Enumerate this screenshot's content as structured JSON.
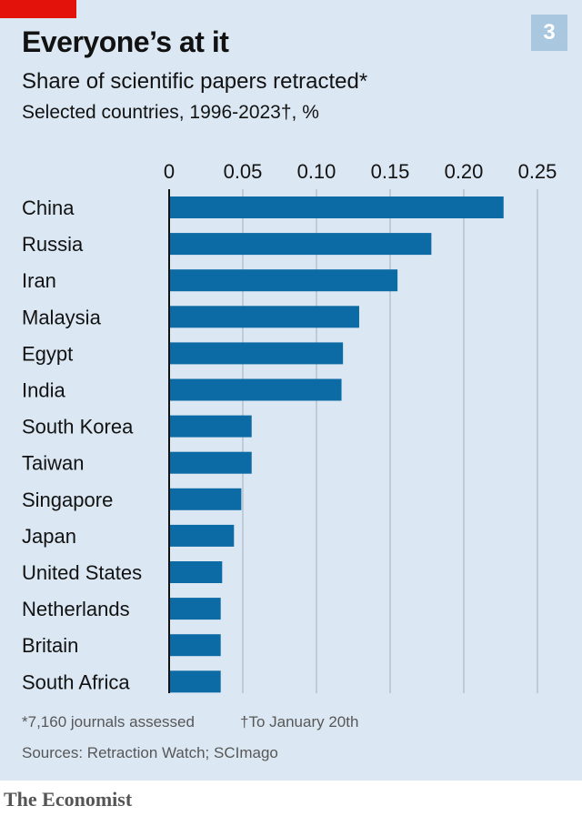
{
  "header": {
    "title": "Everyone’s at it",
    "subtitle": "Share of scientific papers retracted*",
    "subtitle2": "Selected countries, 1996-2023†, %",
    "chart_number": "3"
  },
  "footer": {
    "note1": "*7,160 journals assessed",
    "note2": "†To January 20th",
    "sources": "Sources: Retraction Watch; SCImago",
    "brand": "The Economist"
  },
  "colors": {
    "bar": "#0c6aa4",
    "background": "#dbe8f3",
    "accent": "#e3120b",
    "grid": "#a9b9c7"
  },
  "chart_data": {
    "type": "bar",
    "orientation": "horizontal",
    "title": "Everyone’s at it",
    "subtitle": "Share of scientific papers retracted*",
    "xlabel": "Selected countries, 1996-2023†, %",
    "ylabel": "",
    "xlim": [
      0,
      0.25
    ],
    "xticks": [
      0,
      0.05,
      0.1,
      0.15,
      0.2,
      0.25
    ],
    "xtick_labels": [
      "0",
      "0.05",
      "0.10",
      "0.15",
      "0.20",
      "0.25"
    ],
    "grid": true,
    "categories": [
      "China",
      "Russia",
      "Iran",
      "Malaysia",
      "Egypt",
      "India",
      "South Korea",
      "Taiwan",
      "Singapore",
      "Japan",
      "United States",
      "Netherlands",
      "Britain",
      "South Africa"
    ],
    "values": [
      0.227,
      0.178,
      0.155,
      0.129,
      0.118,
      0.117,
      0.056,
      0.056,
      0.049,
      0.044,
      0.036,
      0.035,
      0.035,
      0.035
    ]
  }
}
